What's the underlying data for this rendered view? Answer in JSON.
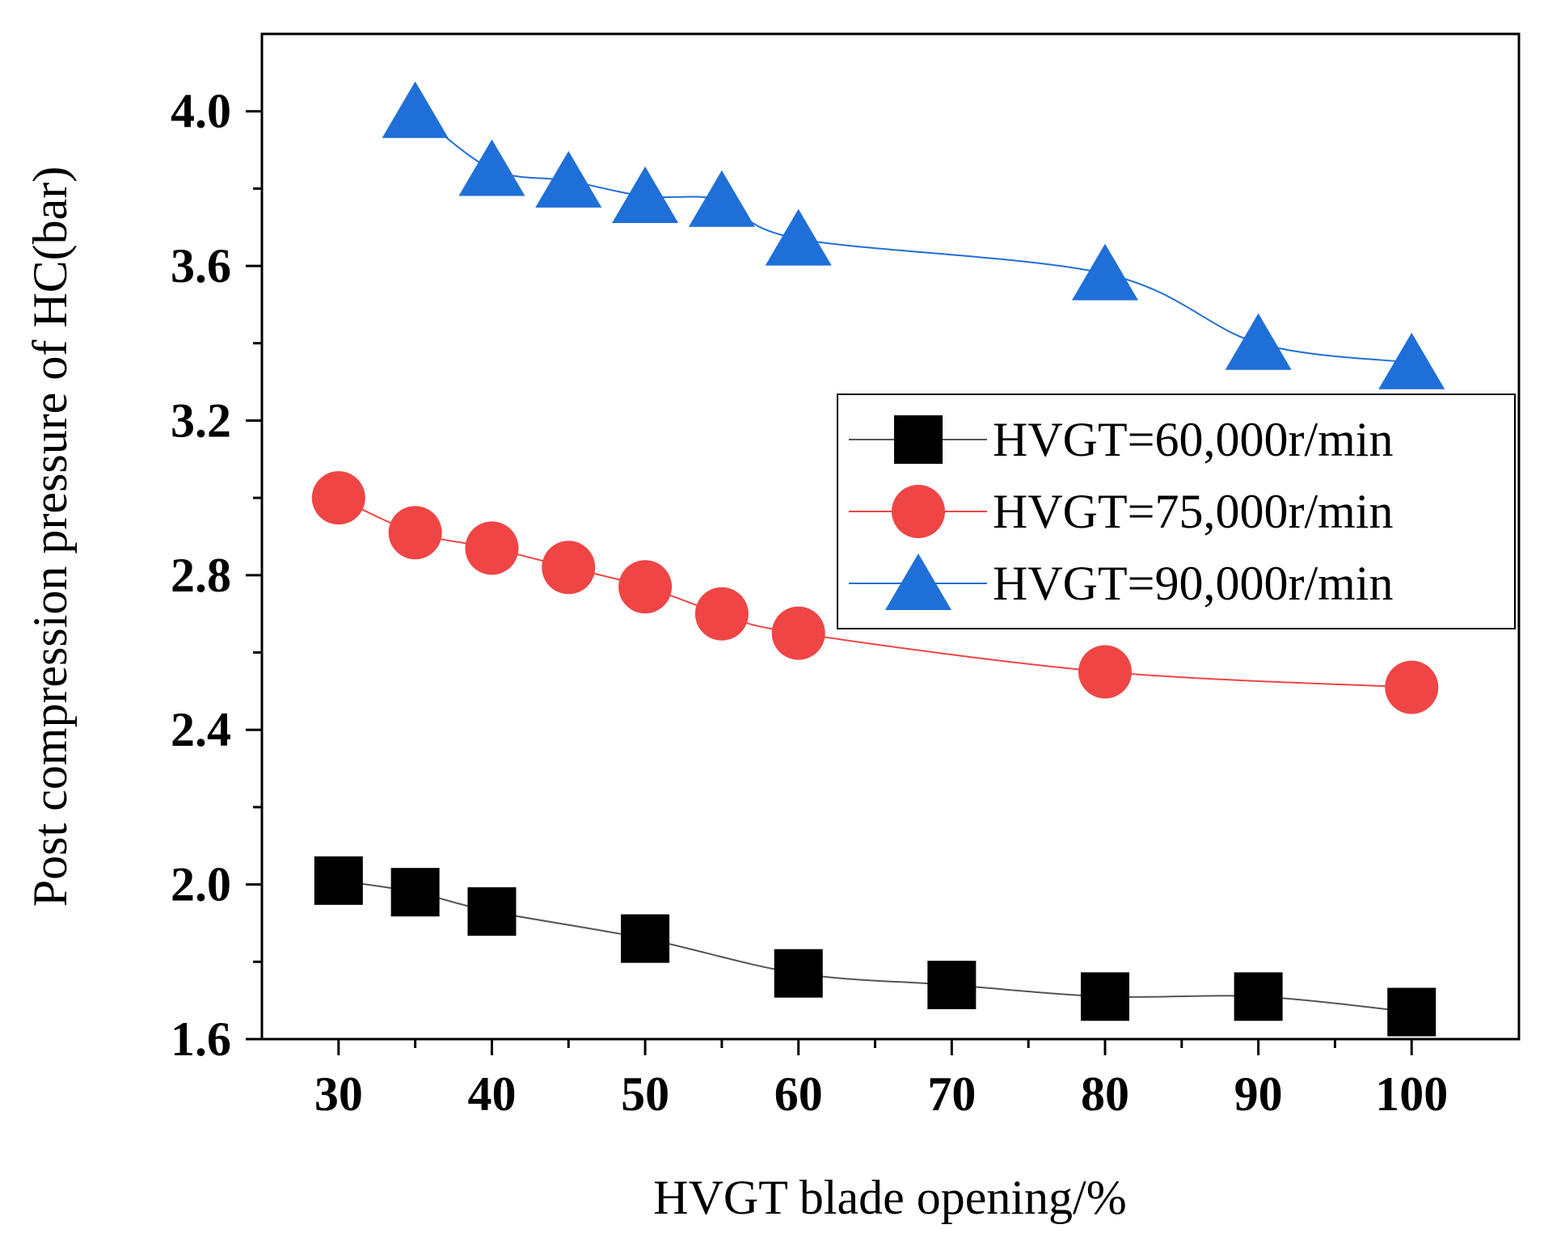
{
  "chart_data": {
    "type": "line",
    "title": "",
    "xlabel": "HVGT blade opening/%",
    "ylabel": "Post compression pressure of HC(bar)",
    "xlim": [
      25,
      107
    ],
    "ylim": [
      1.6,
      4.2
    ],
    "xticks": [
      30,
      40,
      50,
      60,
      70,
      80,
      90,
      100
    ],
    "xtick_labels": [
      "30",
      "40",
      "50",
      "60",
      "70",
      "80",
      "90",
      "100"
    ],
    "yticks": [
      1.6,
      2.0,
      2.4,
      2.8,
      3.2,
      3.6,
      4.0
    ],
    "ytick_labels": [
      "1.6",
      "2.0",
      "2.4",
      "2.8",
      "3.2",
      "3.6",
      "4.0"
    ],
    "grid": false,
    "legend_position": "right",
    "series": [
      {
        "name": "HVGT=60,000r/min",
        "marker": "square",
        "color": "#000000",
        "line_color": "#555555",
        "x": [
          30,
          35,
          40,
          50,
          60,
          70,
          80,
          90,
          100
        ],
        "y": [
          2.01,
          1.98,
          1.93,
          1.86,
          1.77,
          1.74,
          1.71,
          1.71,
          1.67
        ]
      },
      {
        "name": "HVGT=75,000r/min",
        "marker": "circle",
        "color": "#ef4545",
        "line_color": "#ef4545",
        "x": [
          30,
          35,
          40,
          45,
          50,
          55,
          60,
          80,
          100
        ],
        "y": [
          3.0,
          2.91,
          2.87,
          2.82,
          2.77,
          2.7,
          2.65,
          2.55,
          2.51
        ]
      },
      {
        "name": "HVGT=90,000r/min",
        "marker": "triangle",
        "color": "#1f6fd8",
        "line_color": "#1f6fd8",
        "x": [
          35,
          40,
          45,
          50,
          55,
          60,
          80,
          90,
          100
        ],
        "y": [
          4.0,
          3.85,
          3.82,
          3.78,
          3.77,
          3.67,
          3.58,
          3.4,
          3.35
        ]
      }
    ]
  }
}
